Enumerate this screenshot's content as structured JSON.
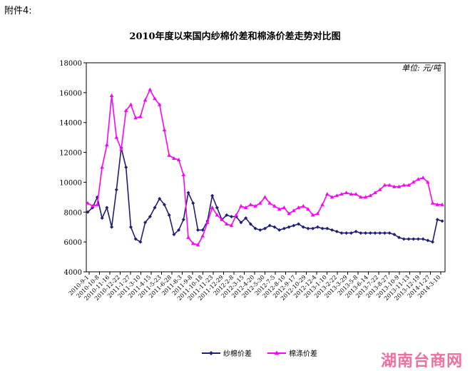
{
  "header": {
    "attachment": "附件4:"
  },
  "chart_data": {
    "type": "line",
    "title": "2010年度以来国内纱棉价差和棉涤价差走势对比图",
    "unit": "单位: 元/吨",
    "ylim": [
      4000,
      18000
    ],
    "yticks": [
      4000,
      6000,
      8000,
      10000,
      12000,
      14000,
      16000,
      18000
    ],
    "x_tick_labels": [
      "2010-9-1",
      "2010-10-8",
      "2010-11-16",
      "2010-12-22",
      "2011-1-27",
      "2011-3-10",
      "2011-4-15",
      "2011-5-23",
      "2011-6-28",
      "2011-8-3",
      "2011-9-8",
      "2011-10-18",
      "2011-11-23",
      "2011-12-29",
      "2012-2-8",
      "2012-3-15",
      "2012-4-20",
      "2012-5-30",
      "2012-7-5",
      "2012-8-10",
      "2012-9-17",
      "2012-10-29",
      "2012-12-4",
      "2013-1-10",
      "2013-2-22",
      "2013-3-29",
      "2013-5-8",
      "2013-6-14",
      "2013-7-22",
      "2013-8-27",
      "2013-10-9",
      "2013-11-13",
      "2013-12-19",
      "2014-1-27",
      "2014-3-10"
    ],
    "x_label_note": "x tick labels are rotated and partially illegible; dates are estimated",
    "legend": {
      "position": "bottom-center"
    },
    "series": [
      {
        "name": "纱棉价差",
        "color": "#1f1f78",
        "marker": "diamond",
        "values": [
          8000,
          8300,
          9000,
          7600,
          8300,
          7000,
          9500,
          12300,
          11000,
          7000,
          6200,
          6000,
          7300,
          7700,
          8300,
          8900,
          8500,
          7800,
          6500,
          6800,
          7500,
          9300,
          8600,
          6800,
          6800,
          7400,
          9100,
          8300,
          7500,
          7800,
          7700,
          7700,
          7300,
          7600,
          7200,
          6900,
          6800,
          6900,
          7100,
          7000,
          6800,
          6900,
          7000,
          7100,
          7200,
          7000,
          6900,
          6900,
          7000,
          6900,
          6900,
          6800,
          6700,
          6600,
          6600,
          6600,
          6700,
          6600,
          6600,
          6600,
          6600,
          6600,
          6600,
          6600,
          6500,
          6300,
          6200,
          6200,
          6200,
          6200,
          6200,
          6100,
          6000,
          7500,
          7400
        ]
      },
      {
        "name": "棉涤价差",
        "color": "#ff00ff",
        "marker": "triangle",
        "values": [
          8600,
          8400,
          8500,
          11000,
          12500,
          15800,
          13000,
          12200,
          14800,
          15200,
          14300,
          14400,
          15500,
          16200,
          15600,
          15200,
          13500,
          11800,
          11600,
          11500,
          10500,
          6300,
          5900,
          5800,
          6400,
          7300,
          8300,
          7800,
          7500,
          7200,
          7100,
          7800,
          8400,
          8300,
          8500,
          8400,
          8600,
          9000,
          8600,
          8400,
          8200,
          8300,
          7900,
          8100,
          8300,
          8400,
          8200,
          7800,
          7900,
          8500,
          9200,
          9000,
          9100,
          9200,
          9300,
          9200,
          9200,
          9000,
          9000,
          9100,
          9300,
          9500,
          9800,
          9800,
          9700,
          9700,
          9800,
          9800,
          10000,
          10200,
          10300,
          10000,
          8600,
          8500,
          8500
        ]
      }
    ]
  },
  "watermark": "湖南台商网"
}
